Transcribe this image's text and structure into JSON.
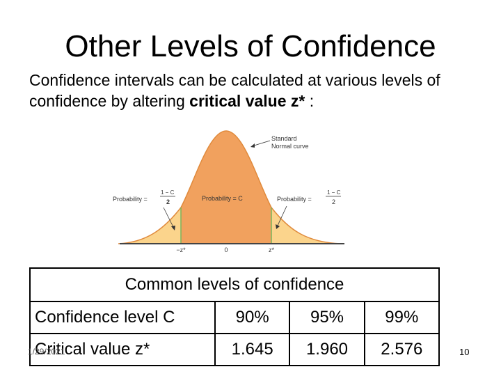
{
  "slide": {
    "title": "Other Levels of Confidence",
    "intro_prefix": "Confidence intervals can be calculated at various levels of confidence by altering ",
    "intro_bold": "critical value z*",
    "intro_suffix": " :",
    "date": "1/29/2021",
    "page_number": "10"
  },
  "figure": {
    "standard_label_1": "Standard",
    "standard_label_2": "Normal curve",
    "prob_left": "Probability =",
    "prob_center": "Probability = C",
    "prob_right": "Probability =",
    "frac_num": "1 − C",
    "frac_den": "2",
    "tick_neg": "−z*",
    "tick_zero": "0",
    "tick_pos": "z*",
    "colors": {
      "center": "#f1a15e",
      "tail": "#fbd48c",
      "line": "#7ab55c",
      "curve": "#e08a3c"
    }
  },
  "table": {
    "caption": "Common levels of confidence",
    "row1_label": "Confidence level C",
    "row1_values": [
      "90%",
      "95%",
      "99%"
    ],
    "row2_label": "Critical value z*",
    "row2_values": [
      "1.645",
      "1.960",
      "2.576"
    ]
  }
}
